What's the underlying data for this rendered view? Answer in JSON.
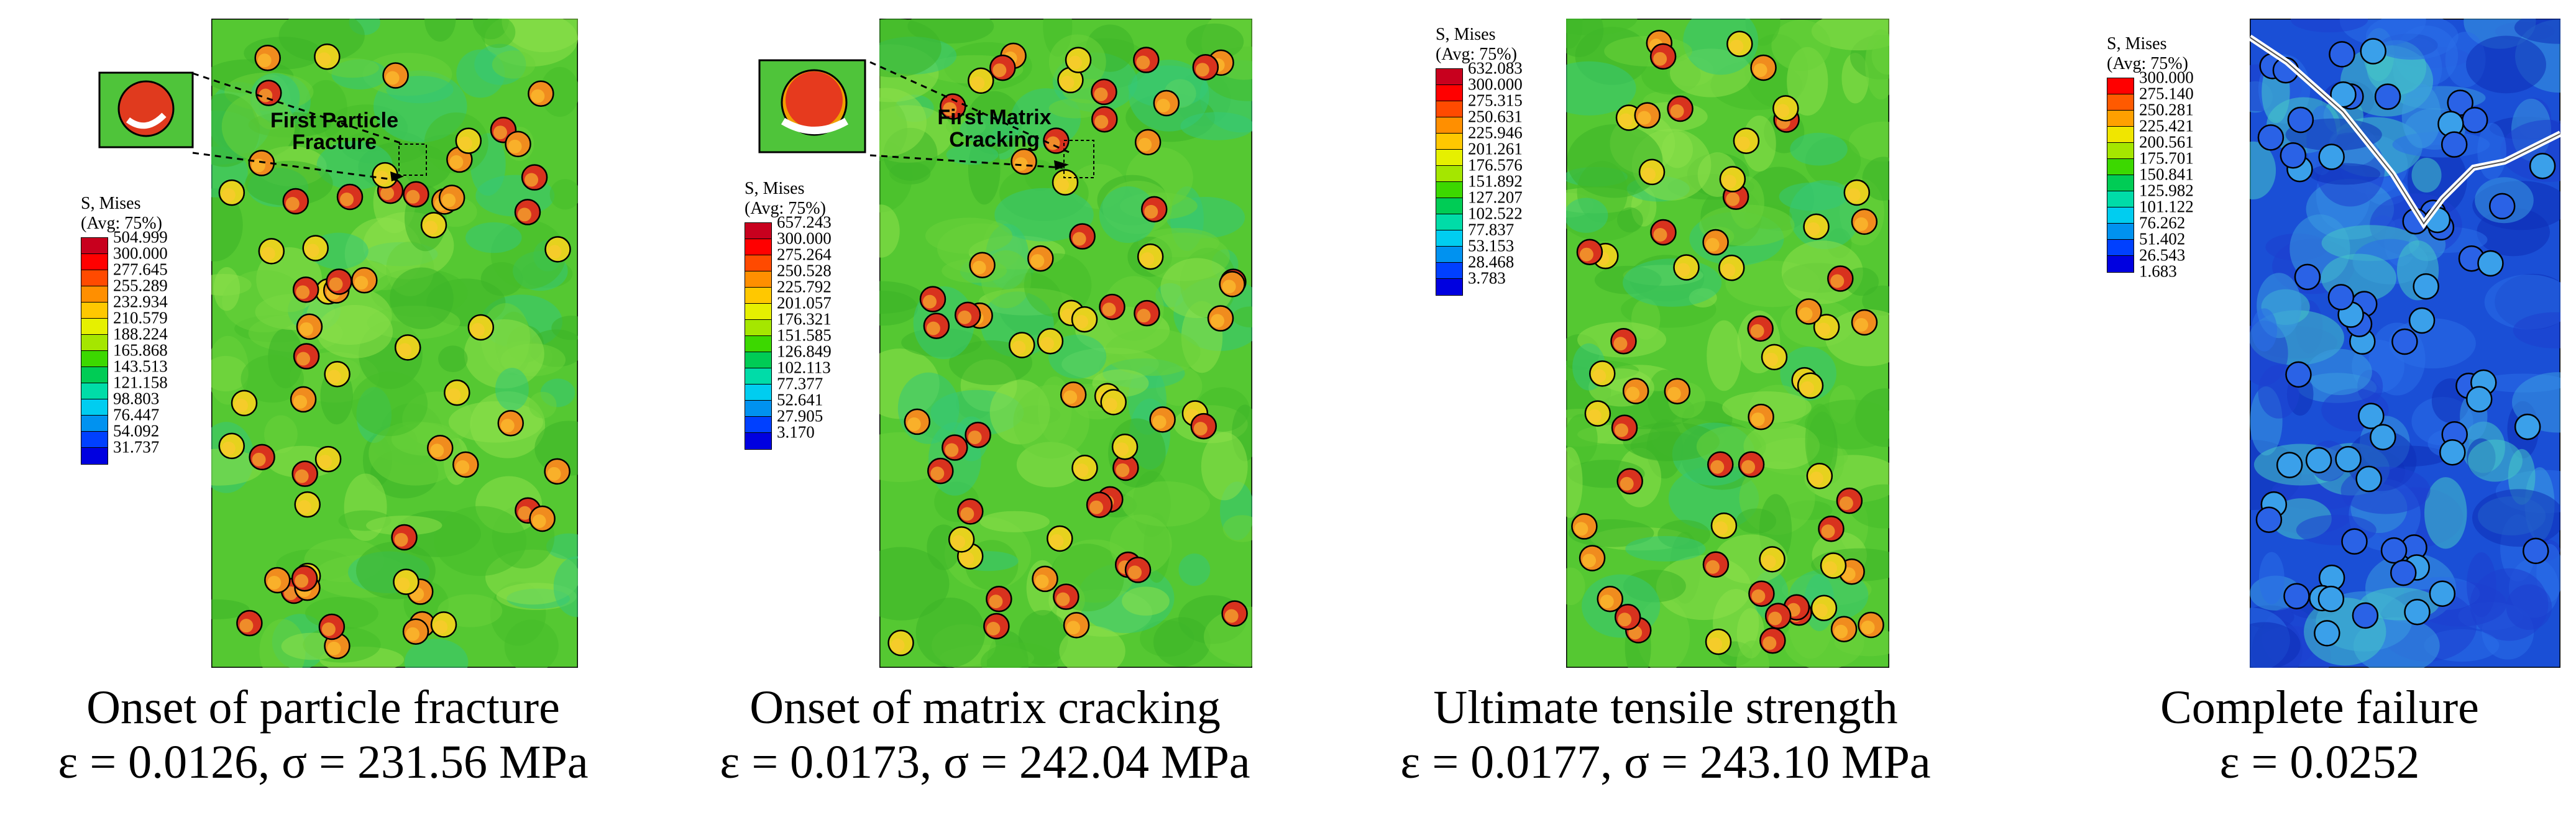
{
  "panels": [
    {
      "legend_title_1": "S, Mises",
      "legend_title_2": "(Avg: 75%)",
      "legend_values": [
        "504.999",
        "300.000",
        "277.645",
        "255.289",
        "232.934",
        "210.579",
        "188.224",
        "165.868",
        "143.513",
        "121.158",
        "98.803",
        "76.447",
        "54.092",
        "31.737"
      ],
      "annotation": [
        "First Particle",
        "Fracture"
      ],
      "caption_line1": "Onset of particle fracture",
      "caption_line2": "ε = 0.0126, σ = 231.56 MPa"
    },
    {
      "legend_title_1": "S, Mises",
      "legend_title_2": "(Avg: 75%)",
      "legend_values": [
        "657.243",
        "300.000",
        "275.264",
        "250.528",
        "225.792",
        "201.057",
        "176.321",
        "151.585",
        "126.849",
        "102.113",
        "77.377",
        "52.641",
        "27.905",
        "3.170"
      ],
      "annotation": [
        "First Matrix",
        "Cracking"
      ],
      "caption_line1": "Onset of matrix cracking",
      "caption_line2": "ε = 0.0173, σ = 242.04 MPa"
    },
    {
      "legend_title_1": "S, Mises",
      "legend_title_2": "(Avg: 75%)",
      "legend_values": [
        "632.083",
        "300.000",
        "275.315",
        "250.631",
        "225.946",
        "201.261",
        "176.576",
        "151.892",
        "127.207",
        "102.522",
        "77.837",
        "53.153",
        "28.468",
        "3.783"
      ],
      "caption_line1": "Ultimate tensile strength",
      "caption_line2": "ε = 0.0177, σ = 243.10 MPa"
    },
    {
      "legend_title_1": "S, Mises",
      "legend_title_2": "(Avg: 75%)",
      "legend_values": [
        "300.000",
        "275.140",
        "250.281",
        "225.421",
        "200.561",
        "175.701",
        "150.841",
        "125.982",
        "101.122",
        "76.262",
        "51.402",
        "26.543",
        "1.683"
      ],
      "caption_line1": "Complete failure",
      "caption_line2": "ε = 0.0252"
    }
  ],
  "colors": {
    "contour_scale": [
      "#c8001e",
      "#ff0000",
      "#ff4a00",
      "#ff8f00",
      "#ffc800",
      "#e6f000",
      "#a5e600",
      "#3cd800",
      "#00cc55",
      "#00dca8",
      "#00cdf0",
      "#0092f0",
      "#0040ff",
      "#0000e0"
    ],
    "fracture_scale": [
      "#ff0000",
      "#ff5a00",
      "#ffa000",
      "#f0e600",
      "#a5e600",
      "#3cd800",
      "#00cc55",
      "#00dca8",
      "#00cdf0",
      "#0092f0",
      "#0040ff",
      "#0000e0"
    ],
    "matrix_green": "#55c832",
    "matrix_blue": "#1a4fd6",
    "particle_red": "#d8321e"
  }
}
